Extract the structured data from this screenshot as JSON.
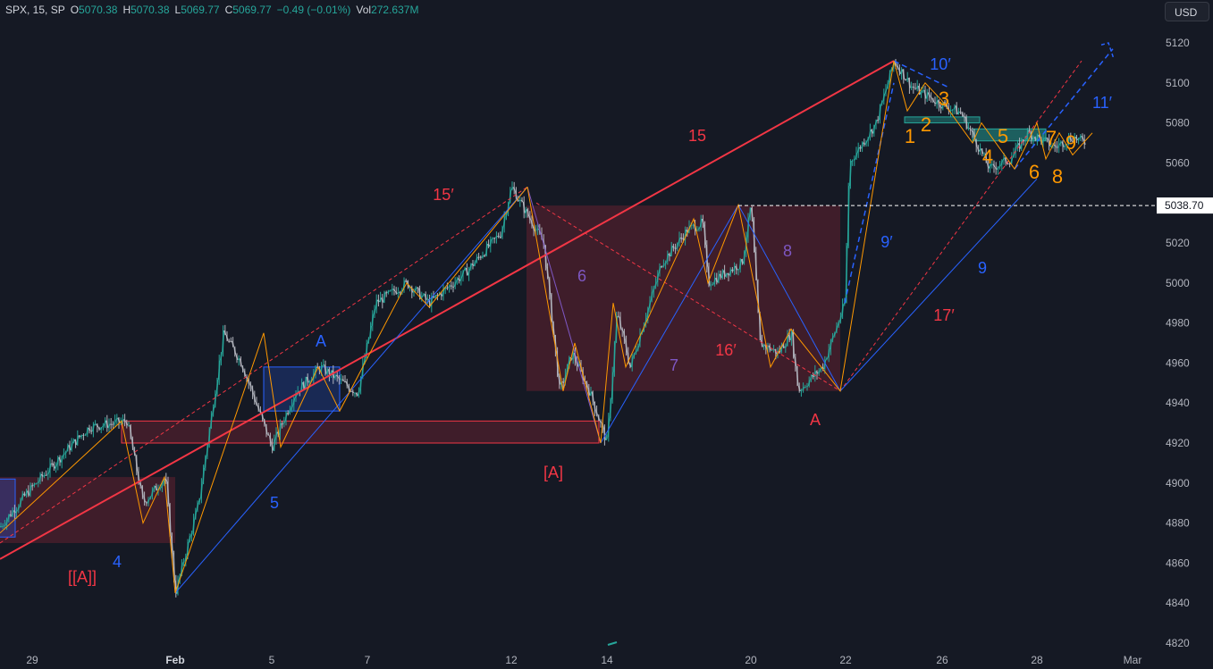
{
  "header": {
    "symbol": "SPX, 15, SP",
    "open_label": "O",
    "open": "5070.38",
    "high_label": "H",
    "high": "5070.38",
    "low_label": "L",
    "low": "5069.77",
    "close_label": "C",
    "close": "5069.77",
    "change": "−0.49 (−0.01%)",
    "vol_label": "Vol",
    "vol": "272.637M"
  },
  "currency_button": "USD",
  "colors": {
    "background": "#151924",
    "red": "#f23645",
    "blue": "#2962ff",
    "orange": "#ff9800",
    "violet": "#7e57c2",
    "zone": "#5c1f2e"
  },
  "chart_data": {
    "type": "candlestick",
    "symbol": "SPX",
    "interval": "15",
    "currency": "USD",
    "ylim": [
      4818,
      5132
    ],
    "y_ticks": [
      4820,
      4840,
      4860,
      4880,
      4900,
      4920,
      4940,
      4960,
      4980,
      5000,
      5020,
      5040,
      5060,
      5080,
      5100,
      5120
    ],
    "x_ticks": [
      "29",
      "Feb",
      "5",
      "7",
      "12",
      "14",
      "20",
      "22",
      "26",
      "28",
      "Mar"
    ],
    "price_marker": "5038.70",
    "price_marker_value": 5038.7,
    "swing_points": [
      {
        "date": "Jan 29",
        "price": 4882
      },
      {
        "date": "Jan 31",
        "price": 4931
      },
      {
        "date": "Feb 1",
        "price": 4845
      },
      {
        "date": "Feb 2",
        "price": 4975
      },
      {
        "date": "Feb 5",
        "price": 4918
      },
      {
        "date": "Feb 6",
        "price": 4958
      },
      {
        "date": "Feb 12",
        "price": 5048
      },
      {
        "date": "Feb 13",
        "price": 4946
      },
      {
        "date": "Feb 14",
        "price": 4920
      },
      {
        "date": "Feb 16",
        "price": 5030
      },
      {
        "date": "Feb 19",
        "price": 5039
      },
      {
        "date": "Feb 21",
        "price": 4946
      },
      {
        "date": "Feb 23",
        "price": 5111
      },
      {
        "date": "Feb 27",
        "price": 5057
      },
      {
        "date": "Feb 29",
        "price": 5070
      }
    ],
    "wave_labels": [
      {
        "text": "[[A]]",
        "color": "red"
      },
      {
        "text": "4",
        "color": "blue"
      },
      {
        "text": "5",
        "color": "blue"
      },
      {
        "text": "A",
        "color": "blue"
      },
      {
        "text": "15′",
        "color": "red"
      },
      {
        "text": "15",
        "color": "red"
      },
      {
        "text": "[A]",
        "color": "red"
      },
      {
        "text": "6",
        "color": "violet"
      },
      {
        "text": "7",
        "color": "violet"
      },
      {
        "text": "16′",
        "color": "red"
      },
      {
        "text": "8",
        "color": "violet"
      },
      {
        "text": "A",
        "color": "red"
      },
      {
        "text": "9′",
        "color": "blue"
      },
      {
        "text": "9",
        "color": "blue"
      },
      {
        "text": "17′",
        "color": "red"
      },
      {
        "text": "10′",
        "color": "blue"
      },
      {
        "text": "11′",
        "color": "blue"
      },
      {
        "text": "1",
        "color": "orange"
      },
      {
        "text": "2",
        "color": "orange"
      },
      {
        "text": "3",
        "color": "orange"
      },
      {
        "text": "4",
        "color": "orange"
      },
      {
        "text": "5",
        "color": "orange"
      },
      {
        "text": "6",
        "color": "orange"
      },
      {
        "text": "7",
        "color": "orange"
      },
      {
        "text": "8",
        "color": "orange"
      },
      {
        "text": "9",
        "color": "orange"
      }
    ],
    "zones": [
      {
        "name": "zone-jan29",
        "price_top": 4903,
        "price_bottom": 4870
      },
      {
        "name": "zone-feb-support",
        "price_top": 4931,
        "price_bottom": 4920
      },
      {
        "name": "zone-feb13-21",
        "price_top": 5038.7,
        "price_bottom": 4946
      }
    ]
  }
}
